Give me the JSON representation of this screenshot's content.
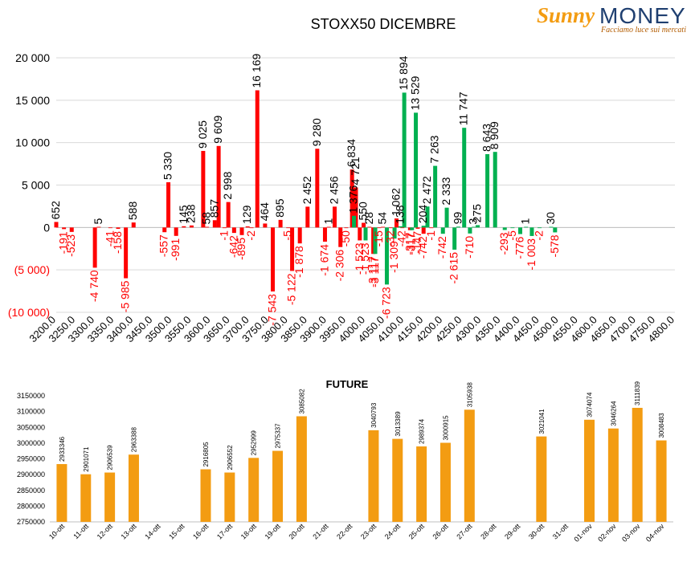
{
  "logo": {
    "brand": "Sunny",
    "money": "MONEY",
    "tagline": "Facciamo luce sui mercati"
  },
  "colors": {
    "call": "#00b050",
    "put": "#ff0000",
    "future": "#f39c12",
    "grid": "#d9d9d9",
    "neg_label": "#ff0000"
  },
  "chart_data": [
    {
      "type": "bar",
      "title": "STOXX50 DICEMBRE",
      "xlabel": "",
      "ylabel": "",
      "categories": [
        "3200.0",
        "3250.0",
        "3300.0",
        "3350.0",
        "3400.0",
        "3450.0",
        "3500.0",
        "3550.0",
        "3600.0",
        "3650.0",
        "3700.0",
        "3750.0",
        "3800.0",
        "3850.0",
        "3900.0",
        "3950.0",
        "4000.0",
        "4050.0",
        "4100.0",
        "4150.0",
        "4200.0",
        "4250.0",
        "4300.0",
        "4350.0",
        "4400.0",
        "4450.0",
        "4500.0",
        "4550.0",
        "4600.0",
        "4650.0",
        "4700.0",
        "4750.0",
        "4800.0"
      ],
      "ytick_labels": [
        "20 000",
        "15 000",
        "10 000",
        "5 000",
        "0",
        "(5 000)",
        "(10 000)"
      ],
      "ylim": [
        -10000,
        20000
      ],
      "grid": true,
      "series": [
        {
          "values": [
            [
              3200,
              652
            ],
            [
              3220,
              -191
            ],
            [
              3240,
              -523
            ],
            [
              3300,
              -4740
            ],
            [
              3310,
              5
            ],
            [
              3340,
              -41
            ],
            [
              3360,
              -158
            ],
            [
              3380,
              -5985
            ],
            [
              3400,
              588
            ],
            [
              3480,
              -557
            ],
            [
              3490,
              5330
            ],
            [
              3510,
              -991
            ],
            [
              3530,
              145
            ],
            [
              3550,
              238
            ],
            [
              3580,
              9025
            ],
            [
              3590,
              58
            ],
            [
              3610,
              857
            ],
            [
              3620,
              9609
            ],
            [
              3635,
              -1
            ],
            [
              3645,
              2998
            ],
            [
              3660,
              -642
            ],
            [
              3680,
              -895
            ],
            [
              3695,
              129
            ],
            [
              3705,
              -2
            ],
            [
              3720,
              16169
            ],
            [
              3740,
              464
            ],
            [
              3760,
              -7543
            ],
            [
              3780,
              895
            ],
            [
              3800,
              -5
            ],
            [
              3810,
              -5122
            ],
            [
              3830,
              -1878
            ],
            [
              3850,
              2452
            ],
            [
              3875,
              9280
            ],
            [
              3895,
              -1674
            ],
            [
              3905,
              1
            ],
            [
              3920,
              2456
            ],
            [
              3935,
              -2306
            ],
            [
              3950,
              -50
            ],
            [
              3965,
              6834
            ],
            [
              3975,
              4721
            ],
            [
              3985,
              -1523
            ],
            [
              3995,
              550
            ],
            [
              4010,
              28
            ],
            [
              4020,
              -3117
            ],
            [
              4035,
              -15
            ],
            [
              4045,
              54
            ],
            [
              4065,
              -32
            ],
            [
              4080,
              1062
            ],
            [
              4095,
              -42
            ],
            [
              4115,
              -317
            ],
            [
              4135,
              -147
            ],
            [
              4150,
              -742
            ],
            [
              4170,
              -1
            ]
          ]
        },
        {
          "values": [
            [
              3970,
              1376
            ],
            [
              4000,
              -1523
            ],
            [
              4025,
              -3117
            ],
            [
              4055,
              -6723
            ],
            [
              4075,
              -1309
            ],
            [
              4090,
              138
            ],
            [
              4100,
              15894
            ],
            [
              4120,
              -317
            ],
            [
              4130,
              13529
            ],
            [
              4150,
              204
            ],
            [
              4160,
              2472
            ],
            [
              4180,
              7263
            ],
            [
              4200,
              -742
            ],
            [
              4210,
              2333
            ],
            [
              4230,
              -2615
            ],
            [
              4240,
              99
            ],
            [
              4255,
              11747
            ],
            [
              4270,
              -710
            ],
            [
              4280,
              3
            ],
            [
              4290,
              275
            ],
            [
              4315,
              8643
            ],
            [
              4335,
              8909
            ],
            [
              4360,
              -293
            ],
            [
              4380,
              -5
            ],
            [
              4400,
              -776
            ],
            [
              4415,
              1
            ],
            [
              4430,
              -1003
            ],
            [
              4450,
              -2
            ],
            [
              4480,
              30
            ],
            [
              4490,
              -578
            ]
          ]
        }
      ]
    },
    {
      "type": "bar",
      "title": "FUTURE",
      "xlabel": "",
      "ylabel": "",
      "categories": [
        "10-ott",
        "11-ott",
        "12-ott",
        "13-ott",
        "14-ott",
        "15-ott",
        "16-ott",
        "17-ott",
        "18-ott",
        "19-ott",
        "20-ott",
        "21-ott",
        "22-ott",
        "23-ott",
        "24-ott",
        "25-ott",
        "26-ott",
        "27-ott",
        "28-ott",
        "29-ott",
        "30-ott",
        "31-ott",
        "01-nov",
        "02-nov",
        "03-nov",
        "04-nov"
      ],
      "values": [
        2933346,
        2901071,
        2906539,
        2963388,
        null,
        null,
        2916805,
        2906552,
        2952999,
        2975337,
        3085082,
        null,
        null,
        3040793,
        3013389,
        2989374,
        3000915,
        3105938,
        null,
        null,
        3021041,
        null,
        3074074,
        3046264,
        3111839,
        3008483
      ],
      "ytick_labels": [
        "3150000",
        "3100000",
        "3050000",
        "3000000",
        "2950000",
        "2900000",
        "2850000",
        "2800000",
        "2750000"
      ],
      "ylim": [
        2750000,
        3150000
      ],
      "grid": false
    }
  ]
}
